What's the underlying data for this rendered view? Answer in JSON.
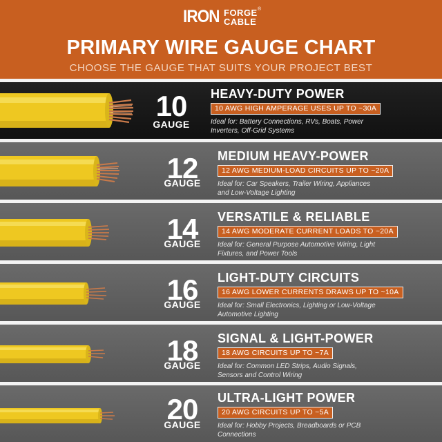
{
  "brand": {
    "iron": "IRON",
    "forge": "FORGE",
    "cable": "CABLE",
    "reg": "®"
  },
  "header": {
    "title": "PRIMARY WIRE GAUGE CHART",
    "subtitle": "CHOOSE THE GAUGE THAT SUITS YOUR PROJECT BEST"
  },
  "colors": {
    "orange": "#c85f20",
    "wire_yellow": "#f2cf2a",
    "copper": "#c97a4a"
  },
  "rows": [
    {
      "gauge": "10",
      "gauge_word": "GAUGE",
      "title": "HEAVY-DUTY POWER",
      "badge": "10 AWG HIGH AMPERAGE USES UP TO ~30A",
      "desc": "Ideal for: Battery Connections, RVs, Boats, Power Inverters, Off-Grid Systems"
    },
    {
      "gauge": "12",
      "gauge_word": "GAUGE",
      "title": "MEDIUM HEAVY-POWER",
      "badge": "12 AWG MEDIUM-LOAD CIRCUITS UP TO ~20A",
      "desc": "Ideal for: Car Speakers, Trailer Wiring, Appliances and Low-Voltage Lighting"
    },
    {
      "gauge": "14",
      "gauge_word": "GAUGE",
      "title": "VERSATILE & RELIABLE",
      "badge": "14 AWG MODERATE CURRENT LOADS TO ~20A",
      "desc": "Ideal for: General Purpose Automotive Wiring, Light Fixtures, and Power Tools"
    },
    {
      "gauge": "16",
      "gauge_word": "GAUGE",
      "title": "LIGHT-DUTY CIRCUITS",
      "badge": "16 AWG LOWER CURRENTS DRAWS UP TO ~10A",
      "desc": "Ideal for: Small Electronics, Lighting or Low-Voltage Automotive Lighting"
    },
    {
      "gauge": "18",
      "gauge_word": "GAUGE",
      "title": "SIGNAL & LIGHT-POWER",
      "badge": "18 AWG CIRCUITS UP TO ~7A",
      "desc": "Ideal for: Common LED Strips, Audio Signals, Sensors and Control Wiring"
    },
    {
      "gauge": "20",
      "gauge_word": "GAUGE",
      "title": "ULTRA-LIGHT POWER",
      "badge": "20 AWG CIRCUITS UP TO ~5A",
      "desc": "Ideal for: Hobby Projects, Breadboards or PCB Connections"
    }
  ]
}
